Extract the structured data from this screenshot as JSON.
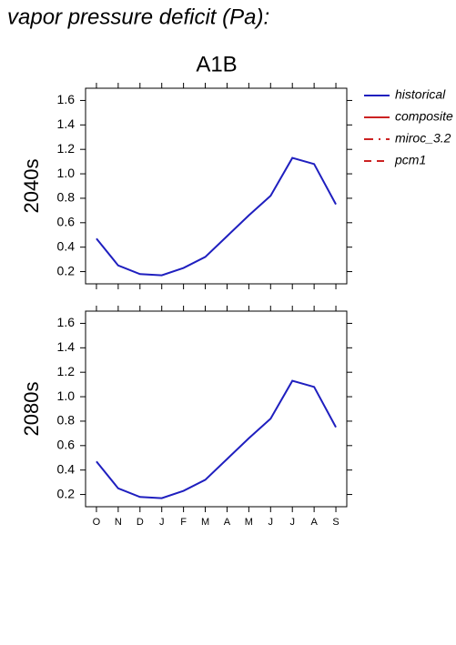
{
  "chart_data": {
    "type": "line",
    "title": "vapor pressure deficit (Pa):",
    "subtitle": "A1B",
    "categories": [
      "O",
      "N",
      "D",
      "J",
      "F",
      "M",
      "A",
      "M",
      "J",
      "J",
      "A",
      "S"
    ],
    "ylim": [
      0.1,
      1.7
    ],
    "yticks": [
      0.2,
      0.4,
      0.6,
      0.8,
      {
        "value": 1,
        "label": "1.0"
      },
      1.2,
      1.4,
      1.6
    ],
    "legend": [
      {
        "name": "historical",
        "color": "#1f1fbf",
        "dash": "none"
      },
      {
        "name": "composite",
        "color": "#cc2222",
        "dash": "none"
      },
      {
        "name": "miroc_3.2",
        "color": "#cc2222",
        "dash": "10 6 2 6"
      },
      {
        "name": "pcm1",
        "color": "#cc2222",
        "dash": "8 6"
      }
    ],
    "panels": [
      {
        "label": "2040s",
        "series": [
          {
            "name": "historical",
            "color": "#1f1fbf",
            "values": [
              0.47,
              0.25,
              0.18,
              0.17,
              0.23,
              0.32,
              0.49,
              0.66,
              0.82,
              1.13,
              1.08,
              0.75
            ]
          }
        ]
      },
      {
        "label": "2080s",
        "series": [
          {
            "name": "historical",
            "color": "#1f1fbf",
            "values": [
              0.47,
              0.25,
              0.18,
              0.17,
              0.23,
              0.32,
              0.49,
              0.66,
              0.82,
              1.13,
              1.08,
              0.75
            ]
          }
        ]
      }
    ]
  }
}
